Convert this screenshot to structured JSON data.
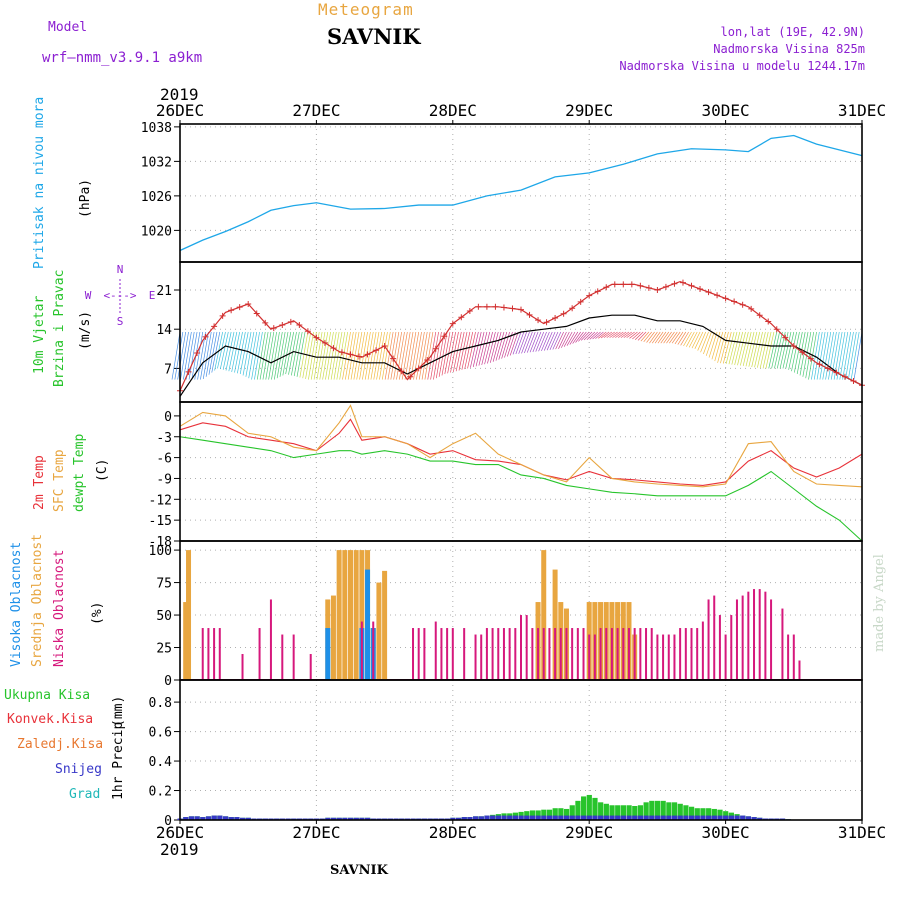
{
  "header": {
    "model_label": "Model",
    "model_name": "wrf—nmm_v3.9.1  a9km",
    "meteogram_label": "Meteogram",
    "station": "SAVNIK",
    "lonlat": "lon,lat (19E, 42.9N)",
    "altitude": "Nadmorska Visina 825m",
    "model_altitude": "Nadmorska Visina u modelu 1244.17m",
    "footer_station": "SAVNIK",
    "watermark": "made by Angel"
  },
  "colors": {
    "pressure": "#1ea7e8",
    "temp2m": "#e8323a",
    "sfc_temp": "#e8a640",
    "dewpt": "#27c42b",
    "high_cloud": "#1e90e8",
    "mid_cloud": "#e8a640",
    "low_cloud": "#d6187c",
    "total_precip": "#27c42b",
    "conv_precip": "#e8323a",
    "frozen_precip": "#e87830",
    "snow": "#3838c8",
    "hail": "#20b8b8",
    "wind_speed": "#000000",
    "gust": "#d23030",
    "direction_labels": "#8b1fd1"
  },
  "chart_data": [
    {
      "type": "line",
      "panel": "pressure",
      "ylabel_title": "Pritisak na nivou mora",
      "ylabel_unit": "(hPa)",
      "x_labels": [
        "26DEC",
        "27DEC",
        "28DEC",
        "29DEC",
        "30DEC",
        "31DEC"
      ],
      "year_label": "2019",
      "x_hours": [
        0,
        4,
        8,
        12,
        16,
        20,
        24,
        30,
        36,
        42,
        48,
        54,
        60,
        66,
        72,
        78,
        84,
        90,
        96,
        100,
        104,
        108,
        112,
        116,
        118,
        120
      ],
      "series": [
        {
          "name": "sea level pressure",
          "values": [
            1016.5,
            1018.3,
            1019.8,
            1021.5,
            1023.5,
            1024.3,
            1024.8,
            1023.7,
            1023.8,
            1024.4,
            1024.4,
            1026.0,
            1027.0,
            1029.3,
            1030.0,
            1031.5,
            1033.3,
            1034.2,
            1034.0,
            1033.7,
            1036.0,
            1036.5,
            1035.0,
            1034.0,
            1033.5,
            1033.0
          ]
        }
      ],
      "yticks": [
        1020,
        1026,
        1032,
        1038
      ],
      "ylim": [
        1014.5,
        1038.5
      ]
    },
    {
      "type": "line",
      "panel": "wind",
      "ylabel_title": "10m Vjetar Brzina i Pravac",
      "ylabel_unit": "(m/s)",
      "compass": {
        "north": "N",
        "south": "S",
        "east": "E",
        "west": "W",
        "arrow": "<--->"
      },
      "x_hours": [
        0,
        4,
        8,
        12,
        16,
        20,
        24,
        28,
        32,
        36,
        40,
        44,
        48,
        52,
        56,
        60,
        64,
        68,
        72,
        76,
        80,
        84,
        88,
        92,
        96,
        100,
        104,
        108,
        112,
        116,
        120
      ],
      "series": [
        {
          "name": "wind speed",
          "values": [
            2,
            8,
            11,
            10,
            8,
            10,
            9,
            9,
            8,
            8,
            6,
            8,
            10,
            11,
            12,
            13.5,
            14,
            14.5,
            16,
            16.5,
            16.5,
            15.5,
            15.5,
            14.5,
            12,
            11.5,
            11,
            11,
            9,
            6,
            4
          ]
        },
        {
          "name": "gust",
          "values": [
            3,
            12,
            17,
            18.5,
            14,
            15.5,
            12.5,
            10,
            9,
            11,
            5,
            9,
            15,
            18,
            18,
            17.5,
            15,
            17,
            20,
            22,
            22,
            21,
            22.5,
            21,
            19.5,
            18,
            15,
            11,
            8,
            6,
            4
          ]
        }
      ],
      "yticks": [
        7,
        14,
        21
      ],
      "ylim": [
        1,
        26
      ]
    },
    {
      "type": "line",
      "panel": "temperature",
      "ylabel_temp2m": "2m Temp",
      "ylabel_sfc": "SFC Temp",
      "ylabel_dewpt": "dewpt Temp",
      "ylabel_unit": "(C)",
      "x_hours": [
        0,
        4,
        8,
        12,
        16,
        20,
        24,
        28,
        30,
        32,
        36,
        40,
        44,
        48,
        52,
        56,
        60,
        64,
        68,
        72,
        76,
        80,
        84,
        88,
        92,
        96,
        100,
        104,
        108,
        112,
        116,
        120
      ],
      "series": [
        {
          "name": "2m Temp",
          "values": [
            -2.0,
            -1.0,
            -1.5,
            -3.0,
            -3.5,
            -4.0,
            -5.0,
            -2.5,
            -0.5,
            -3.5,
            -3.0,
            -4.0,
            -5.5,
            -5.0,
            -6.3,
            -6.5,
            -7.0,
            -8.5,
            -9.2,
            -8.0,
            -9.0,
            -9.2,
            -9.5,
            -9.8,
            -10.0,
            -9.5,
            -6.5,
            -5.0,
            -7.5,
            -8.8,
            -7.5,
            -5.5
          ]
        },
        {
          "name": "SFC Temp",
          "values": [
            -1.5,
            0.5,
            0.0,
            -2.5,
            -3.0,
            -4.5,
            -5.0,
            -1.0,
            1.5,
            -3.0,
            -3.0,
            -4.0,
            -6.0,
            -4.0,
            -2.5,
            -5.5,
            -7.0,
            -8.5,
            -9.5,
            -6.0,
            -9.0,
            -9.5,
            -9.8,
            -10.0,
            -10.2,
            -9.8,
            -4.0,
            -3.7,
            -8.0,
            -9.8,
            -10.0,
            -10.2
          ]
        },
        {
          "name": "dewpt Temp",
          "values": [
            -3.0,
            -3.5,
            -4.0,
            -4.5,
            -5.0,
            -6.0,
            -5.5,
            -5.0,
            -5.0,
            -5.5,
            -5.0,
            -5.5,
            -6.5,
            -6.5,
            -7.0,
            -7.0,
            -8.5,
            -9.0,
            -10.0,
            -10.5,
            -11.0,
            -11.2,
            -11.5,
            -11.5,
            -11.5,
            -11.5,
            -10.0,
            -8.0,
            -10.5,
            -13.0,
            -15.0,
            -18.0
          ]
        }
      ],
      "yticks": [
        0,
        -3,
        -6,
        -9,
        -12,
        -15,
        -18
      ],
      "ylim": [
        -18,
        2
      ]
    },
    {
      "type": "bar",
      "panel": "clouds",
      "ylabel_high": "Visoka Oblacnost",
      "ylabel_mid": "Srednja Oblacnost",
      "ylabel_low": "Niska Oblacnost",
      "ylabel_unit": "(%)",
      "yticks": [
        0,
        25,
        50,
        75,
        100
      ],
      "ylim": [
        0,
        100
      ],
      "low_cloud": [
        [
          4,
          40
        ],
        [
          5,
          40
        ],
        [
          6,
          40
        ],
        [
          7,
          40
        ],
        [
          11,
          20
        ],
        [
          14,
          40
        ],
        [
          16,
          62
        ],
        [
          18,
          35
        ],
        [
          20,
          35
        ],
        [
          23,
          20
        ],
        [
          32,
          45
        ],
        [
          34,
          45
        ],
        [
          41,
          40
        ],
        [
          42,
          40
        ],
        [
          43,
          40
        ],
        [
          45,
          45
        ],
        [
          46,
          40
        ],
        [
          47,
          40
        ],
        [
          48,
          40
        ],
        [
          50,
          40
        ],
        [
          52,
          35
        ],
        [
          53,
          35
        ],
        [
          54,
          40
        ],
        [
          55,
          40
        ],
        [
          56,
          40
        ],
        [
          57,
          40
        ],
        [
          58,
          40
        ],
        [
          59,
          40
        ],
        [
          60,
          50
        ],
        [
          61,
          50
        ],
        [
          62,
          40
        ],
        [
          63,
          40
        ],
        [
          64,
          40
        ],
        [
          65,
          40
        ],
        [
          66,
          40
        ],
        [
          67,
          40
        ],
        [
          68,
          40
        ],
        [
          69,
          40
        ],
        [
          70,
          40
        ],
        [
          71,
          40
        ],
        [
          72,
          35
        ],
        [
          73,
          35
        ],
        [
          74,
          40
        ],
        [
          75,
          40
        ],
        [
          76,
          40
        ],
        [
          77,
          40
        ],
        [
          78,
          40
        ],
        [
          79,
          40
        ],
        [
          80,
          40
        ],
        [
          81,
          40
        ],
        [
          82,
          40
        ],
        [
          83,
          40
        ],
        [
          84,
          35
        ],
        [
          85,
          35
        ],
        [
          86,
          35
        ],
        [
          87,
          35
        ],
        [
          88,
          40
        ],
        [
          89,
          40
        ],
        [
          90,
          40
        ],
        [
          91,
          40
        ],
        [
          92,
          45
        ],
        [
          93,
          62
        ],
        [
          94,
          65
        ],
        [
          95,
          50
        ],
        [
          96,
          35
        ],
        [
          97,
          50
        ],
        [
          98,
          62
        ],
        [
          99,
          65
        ],
        [
          100,
          68
        ],
        [
          101,
          70
        ],
        [
          102,
          70
        ],
        [
          103,
          68
        ],
        [
          104,
          62
        ],
        [
          106,
          55
        ],
        [
          107,
          35
        ],
        [
          108,
          35
        ],
        [
          109,
          15
        ]
      ],
      "mid_cloud": [
        [
          1,
          60
        ],
        [
          1.5,
          100
        ],
        [
          26,
          62
        ],
        [
          27,
          65
        ],
        [
          28,
          100
        ],
        [
          29,
          100
        ],
        [
          30,
          100
        ],
        [
          31,
          100
        ],
        [
          32,
          100
        ],
        [
          33,
          100
        ],
        [
          34,
          40
        ],
        [
          35,
          75
        ],
        [
          36,
          84
        ],
        [
          63,
          60
        ],
        [
          64,
          100
        ],
        [
          66,
          85
        ],
        [
          67,
          60
        ],
        [
          68,
          55
        ],
        [
          72,
          60
        ],
        [
          73,
          60
        ],
        [
          74,
          60
        ],
        [
          75,
          60
        ],
        [
          76,
          60
        ],
        [
          77,
          60
        ],
        [
          78,
          60
        ],
        [
          79,
          60
        ],
        [
          80,
          35
        ]
      ],
      "high_cloud": [
        [
          26,
          40
        ],
        [
          32,
          40
        ],
        [
          33,
          85
        ],
        [
          34,
          40
        ]
      ]
    },
    {
      "type": "bar",
      "panel": "precip",
      "ylabel_title": "1hr Precip",
      "ylabel_unit": "(mm)",
      "legend": [
        "Ukupna Kisa",
        "Konvek.Kisa",
        "Zaledj.Kisa",
        "Snijeg",
        "Grad"
      ],
      "yticks": [
        0,
        0.2,
        0.4,
        0.6,
        0.8
      ],
      "ylim": [
        0,
        0.95
      ],
      "x_labels": [
        "26DEC",
        "27DEC",
        "28DEC",
        "29DEC",
        "30DEC",
        "31DEC"
      ],
      "year_label": "2019",
      "total": [
        [
          0,
          0.01
        ],
        [
          1,
          0.02
        ],
        [
          2,
          0.025
        ],
        [
          3,
          0.025
        ],
        [
          4,
          0.02
        ],
        [
          5,
          0.025
        ],
        [
          6,
          0.03
        ],
        [
          7,
          0.03
        ],
        [
          8,
          0.025
        ],
        [
          9,
          0.02
        ],
        [
          10,
          0.02
        ],
        [
          11,
          0.015
        ],
        [
          12,
          0.015
        ],
        [
          13,
          0.01
        ],
        [
          14,
          0.01
        ],
        [
          15,
          0.01
        ],
        [
          16,
          0.01
        ],
        [
          17,
          0.01
        ],
        [
          18,
          0.01
        ],
        [
          19,
          0.01
        ],
        [
          20,
          0.01
        ],
        [
          21,
          0.01
        ],
        [
          22,
          0.01
        ],
        [
          23,
          0.01
        ],
        [
          24,
          0.01
        ],
        [
          25,
          0.01
        ],
        [
          26,
          0.015
        ],
        [
          27,
          0.015
        ],
        [
          28,
          0.015
        ],
        [
          29,
          0.015
        ],
        [
          30,
          0.015
        ],
        [
          31,
          0.015
        ],
        [
          32,
          0.015
        ],
        [
          33,
          0.015
        ],
        [
          34,
          0.01
        ],
        [
          35,
          0.01
        ],
        [
          36,
          0.01
        ],
        [
          37,
          0.01
        ],
        [
          38,
          0.01
        ],
        [
          39,
          0.01
        ],
        [
          40,
          0.01
        ],
        [
          41,
          0.01
        ],
        [
          42,
          0.01
        ],
        [
          43,
          0.01
        ],
        [
          44,
          0.01
        ],
        [
          45,
          0.01
        ],
        [
          46,
          0.01
        ],
        [
          47,
          0.01
        ],
        [
          48,
          0.015
        ],
        [
          49,
          0.015
        ],
        [
          50,
          0.02
        ],
        [
          51,
          0.02
        ],
        [
          52,
          0.025
        ],
        [
          53,
          0.025
        ],
        [
          54,
          0.03
        ],
        [
          55,
          0.035
        ],
        [
          56,
          0.04
        ],
        [
          57,
          0.045
        ],
        [
          58,
          0.045
        ],
        [
          59,
          0.05
        ],
        [
          60,
          0.055
        ],
        [
          61,
          0.06
        ],
        [
          62,
          0.065
        ],
        [
          63,
          0.065
        ],
        [
          64,
          0.07
        ],
        [
          65,
          0.07
        ],
        [
          66,
          0.08
        ],
        [
          67,
          0.08
        ],
        [
          68,
          0.075
        ],
        [
          69,
          0.1
        ],
        [
          70,
          0.13
        ],
        [
          71,
          0.16
        ],
        [
          72,
          0.17
        ],
        [
          73,
          0.15
        ],
        [
          74,
          0.12
        ],
        [
          75,
          0.11
        ],
        [
          76,
          0.1
        ],
        [
          77,
          0.1
        ],
        [
          78,
          0.1
        ],
        [
          79,
          0.1
        ],
        [
          80,
          0.095
        ],
        [
          81,
          0.1
        ],
        [
          82,
          0.12
        ],
        [
          83,
          0.13
        ],
        [
          84,
          0.13
        ],
        [
          85,
          0.13
        ],
        [
          86,
          0.12
        ],
        [
          87,
          0.12
        ],
        [
          88,
          0.11
        ],
        [
          89,
          0.1
        ],
        [
          90,
          0.09
        ],
        [
          91,
          0.08
        ],
        [
          92,
          0.08
        ],
        [
          93,
          0.08
        ],
        [
          94,
          0.075
        ],
        [
          95,
          0.07
        ],
        [
          96,
          0.06
        ],
        [
          97,
          0.05
        ],
        [
          98,
          0.04
        ],
        [
          99,
          0.03
        ],
        [
          100,
          0.025
        ],
        [
          101,
          0.02
        ],
        [
          102,
          0.015
        ],
        [
          103,
          0.01
        ],
        [
          104,
          0.01
        ],
        [
          105,
          0.01
        ],
        [
          106,
          0.01
        ],
        [
          107,
          0.005
        ]
      ]
    }
  ]
}
